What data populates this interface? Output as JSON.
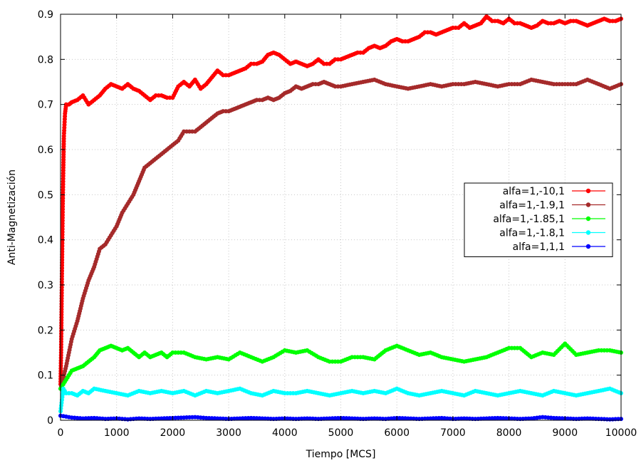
{
  "chart_data": {
    "type": "line",
    "title": "",
    "xlabel": "Tiempo [MCS]",
    "ylabel": "Anti-Magnetización",
    "xlim": [
      0,
      10000
    ],
    "ylim": [
      0,
      0.9
    ],
    "x_ticks": [
      0,
      1000,
      2000,
      3000,
      4000,
      5000,
      6000,
      7000,
      8000,
      9000,
      10000
    ],
    "y_ticks": [
      0,
      0.1,
      0.2,
      0.3,
      0.4,
      0.5,
      0.6,
      0.7,
      0.8,
      0.9
    ],
    "x_tick_labels": [
      "0",
      "1000",
      "2000",
      "3000",
      "4000",
      "5000",
      "6000",
      "7000",
      "8000",
      "9000",
      "10000"
    ],
    "y_tick_labels": [
      "0",
      "0.1",
      "0.2",
      "0.3",
      "0.4",
      "0.5",
      "0.6",
      "0.7",
      "0.8",
      "0.9"
    ],
    "grid": true,
    "legend_position": "right",
    "series": [
      {
        "name": "alfa=1,-10,1",
        "color": "#ff0000",
        "x": [
          0,
          10,
          20,
          30,
          40,
          50,
          60,
          80,
          100,
          150,
          200,
          300,
          400,
          500,
          600,
          700,
          800,
          900,
          1000,
          1100,
          1200,
          1300,
          1400,
          1500,
          1600,
          1700,
          1800,
          1900,
          2000,
          2100,
          2200,
          2300,
          2400,
          2500,
          2600,
          2700,
          2800,
          2900,
          3000,
          3100,
          3200,
          3300,
          3400,
          3500,
          3600,
          3700,
          3800,
          3900,
          4000,
          4100,
          4200,
          4300,
          4400,
          4500,
          4600,
          4700,
          4800,
          4900,
          5000,
          5100,
          5200,
          5300,
          5400,
          5500,
          5600,
          5700,
          5800,
          5900,
          6000,
          6100,
          6200,
          6300,
          6400,
          6500,
          6600,
          6700,
          6800,
          6900,
          7000,
          7100,
          7200,
          7300,
          7400,
          7500,
          7600,
          7700,
          7800,
          7900,
          8000,
          8100,
          8200,
          8300,
          8400,
          8500,
          8600,
          8700,
          8800,
          8900,
          9000,
          9100,
          9200,
          9300,
          9400,
          9500,
          9600,
          9700,
          9800,
          9900,
          10000
        ],
        "y": [
          0.08,
          0.15,
          0.27,
          0.38,
          0.48,
          0.56,
          0.63,
          0.68,
          0.7,
          0.7,
          0.705,
          0.71,
          0.72,
          0.7,
          0.71,
          0.72,
          0.735,
          0.745,
          0.74,
          0.735,
          0.745,
          0.735,
          0.73,
          0.72,
          0.71,
          0.72,
          0.72,
          0.715,
          0.715,
          0.74,
          0.75,
          0.74,
          0.755,
          0.735,
          0.745,
          0.76,
          0.775,
          0.765,
          0.765,
          0.77,
          0.775,
          0.78,
          0.79,
          0.79,
          0.795,
          0.81,
          0.815,
          0.81,
          0.8,
          0.79,
          0.795,
          0.79,
          0.785,
          0.79,
          0.8,
          0.79,
          0.79,
          0.8,
          0.8,
          0.805,
          0.81,
          0.815,
          0.815,
          0.825,
          0.83,
          0.825,
          0.83,
          0.84,
          0.845,
          0.84,
          0.84,
          0.845,
          0.85,
          0.86,
          0.86,
          0.855,
          0.86,
          0.865,
          0.87,
          0.87,
          0.88,
          0.87,
          0.875,
          0.88,
          0.895,
          0.885,
          0.885,
          0.88,
          0.89,
          0.88,
          0.88,
          0.875,
          0.87,
          0.875,
          0.885,
          0.88,
          0.88,
          0.885,
          0.88,
          0.885,
          0.885,
          0.88,
          0.875,
          0.88,
          0.885,
          0.89,
          0.885,
          0.885,
          0.89
        ]
      },
      {
        "name": "alfa=1,-1.9,1",
        "color": "#a52a2a",
        "x": [
          0,
          100,
          200,
          300,
          400,
          500,
          600,
          700,
          800,
          900,
          1000,
          1100,
          1200,
          1300,
          1400,
          1500,
          1600,
          1700,
          1800,
          1900,
          2000,
          2100,
          2200,
          2300,
          2400,
          2500,
          2600,
          2700,
          2800,
          2900,
          3000,
          3100,
          3200,
          3300,
          3400,
          3500,
          3600,
          3700,
          3800,
          3900,
          4000,
          4100,
          4200,
          4300,
          4400,
          4500,
          4600,
          4700,
          4800,
          4900,
          5000,
          5200,
          5400,
          5600,
          5800,
          6000,
          6200,
          6400,
          6600,
          6800,
          7000,
          7200,
          7400,
          7600,
          7800,
          8000,
          8200,
          8400,
          8600,
          8800,
          9000,
          9200,
          9400,
          9600,
          9800,
          10000
        ],
        "y": [
          0.07,
          0.12,
          0.18,
          0.22,
          0.27,
          0.31,
          0.34,
          0.38,
          0.39,
          0.41,
          0.43,
          0.46,
          0.48,
          0.5,
          0.53,
          0.56,
          0.57,
          0.58,
          0.59,
          0.6,
          0.61,
          0.62,
          0.64,
          0.64,
          0.64,
          0.65,
          0.66,
          0.67,
          0.68,
          0.685,
          0.685,
          0.69,
          0.695,
          0.7,
          0.705,
          0.71,
          0.71,
          0.715,
          0.71,
          0.715,
          0.725,
          0.73,
          0.74,
          0.735,
          0.74,
          0.745,
          0.745,
          0.75,
          0.745,
          0.74,
          0.74,
          0.745,
          0.75,
          0.755,
          0.745,
          0.74,
          0.735,
          0.74,
          0.745,
          0.74,
          0.745,
          0.745,
          0.75,
          0.745,
          0.74,
          0.745,
          0.745,
          0.755,
          0.75,
          0.745,
          0.745,
          0.745,
          0.755,
          0.745,
          0.735,
          0.745
        ]
      },
      {
        "name": "alfa=1,-1.85,1",
        "color": "#00ff00",
        "x": [
          0,
          100,
          200,
          300,
          400,
          500,
          600,
          700,
          800,
          900,
          1000,
          1100,
          1200,
          1300,
          1400,
          1500,
          1600,
          1700,
          1800,
          1900,
          2000,
          2200,
          2400,
          2600,
          2800,
          3000,
          3200,
          3400,
          3600,
          3800,
          4000,
          4200,
          4400,
          4600,
          4800,
          5000,
          5200,
          5400,
          5600,
          5800,
          6000,
          6200,
          6400,
          6600,
          6800,
          7000,
          7200,
          7400,
          7600,
          7800,
          8000,
          8200,
          8400,
          8600,
          8800,
          9000,
          9200,
          9400,
          9600,
          9800,
          10000
        ],
        "y": [
          0.07,
          0.09,
          0.11,
          0.115,
          0.12,
          0.13,
          0.14,
          0.155,
          0.16,
          0.165,
          0.16,
          0.155,
          0.16,
          0.15,
          0.14,
          0.15,
          0.14,
          0.145,
          0.15,
          0.14,
          0.15,
          0.15,
          0.14,
          0.135,
          0.14,
          0.135,
          0.15,
          0.14,
          0.13,
          0.14,
          0.155,
          0.15,
          0.155,
          0.14,
          0.13,
          0.13,
          0.14,
          0.14,
          0.135,
          0.155,
          0.165,
          0.155,
          0.145,
          0.15,
          0.14,
          0.135,
          0.13,
          0.135,
          0.14,
          0.15,
          0.16,
          0.16,
          0.14,
          0.15,
          0.145,
          0.17,
          0.145,
          0.15,
          0.155,
          0.155,
          0.15
        ]
      },
      {
        "name": "alfa=1,-1.8,1",
        "color": "#00ffff",
        "x": [
          0,
          50,
          100,
          200,
          300,
          400,
          500,
          600,
          800,
          1000,
          1200,
          1400,
          1600,
          1800,
          2000,
          2200,
          2400,
          2600,
          2800,
          3000,
          3200,
          3400,
          3600,
          3800,
          4000,
          4200,
          4400,
          4600,
          4800,
          5000,
          5200,
          5400,
          5600,
          5800,
          6000,
          6200,
          6400,
          6600,
          6800,
          7000,
          7200,
          7400,
          7600,
          7800,
          8000,
          8200,
          8400,
          8600,
          8800,
          9000,
          9200,
          9400,
          9600,
          9800,
          10000
        ],
        "y": [
          0.02,
          0.07,
          0.06,
          0.06,
          0.055,
          0.065,
          0.06,
          0.07,
          0.065,
          0.06,
          0.055,
          0.065,
          0.06,
          0.065,
          0.06,
          0.065,
          0.055,
          0.065,
          0.06,
          0.065,
          0.07,
          0.06,
          0.055,
          0.065,
          0.06,
          0.06,
          0.065,
          0.06,
          0.055,
          0.06,
          0.065,
          0.06,
          0.065,
          0.06,
          0.07,
          0.06,
          0.055,
          0.06,
          0.065,
          0.06,
          0.055,
          0.065,
          0.06,
          0.055,
          0.06,
          0.065,
          0.06,
          0.055,
          0.065,
          0.06,
          0.055,
          0.06,
          0.065,
          0.07,
          0.06
        ]
      },
      {
        "name": "alfa=1,1,1",
        "color": "#0000ff",
        "x": [
          0,
          200,
          400,
          600,
          800,
          1000,
          1200,
          1400,
          1600,
          1800,
          2000,
          2200,
          2400,
          2600,
          2800,
          3000,
          3200,
          3400,
          3600,
          3800,
          4000,
          4200,
          4400,
          4600,
          4800,
          5000,
          5200,
          5400,
          5600,
          5800,
          6000,
          6200,
          6400,
          6600,
          6800,
          7000,
          7200,
          7400,
          7600,
          7800,
          8000,
          8200,
          8400,
          8600,
          8800,
          9000,
          9200,
          9400,
          9600,
          9800,
          10000
        ],
        "y": [
          0.01,
          0.006,
          0.004,
          0.005,
          0.003,
          0.004,
          0.002,
          0.004,
          0.003,
          0.004,
          0.005,
          0.006,
          0.007,
          0.005,
          0.004,
          0.003,
          0.004,
          0.005,
          0.004,
          0.003,
          0.004,
          0.003,
          0.004,
          0.003,
          0.004,
          0.005,
          0.004,
          0.003,
          0.004,
          0.003,
          0.005,
          0.004,
          0.003,
          0.004,
          0.005,
          0.003,
          0.004,
          0.003,
          0.004,
          0.005,
          0.004,
          0.003,
          0.004,
          0.007,
          0.005,
          0.004,
          0.003,
          0.004,
          0.003,
          0.002,
          0.003
        ]
      }
    ]
  }
}
